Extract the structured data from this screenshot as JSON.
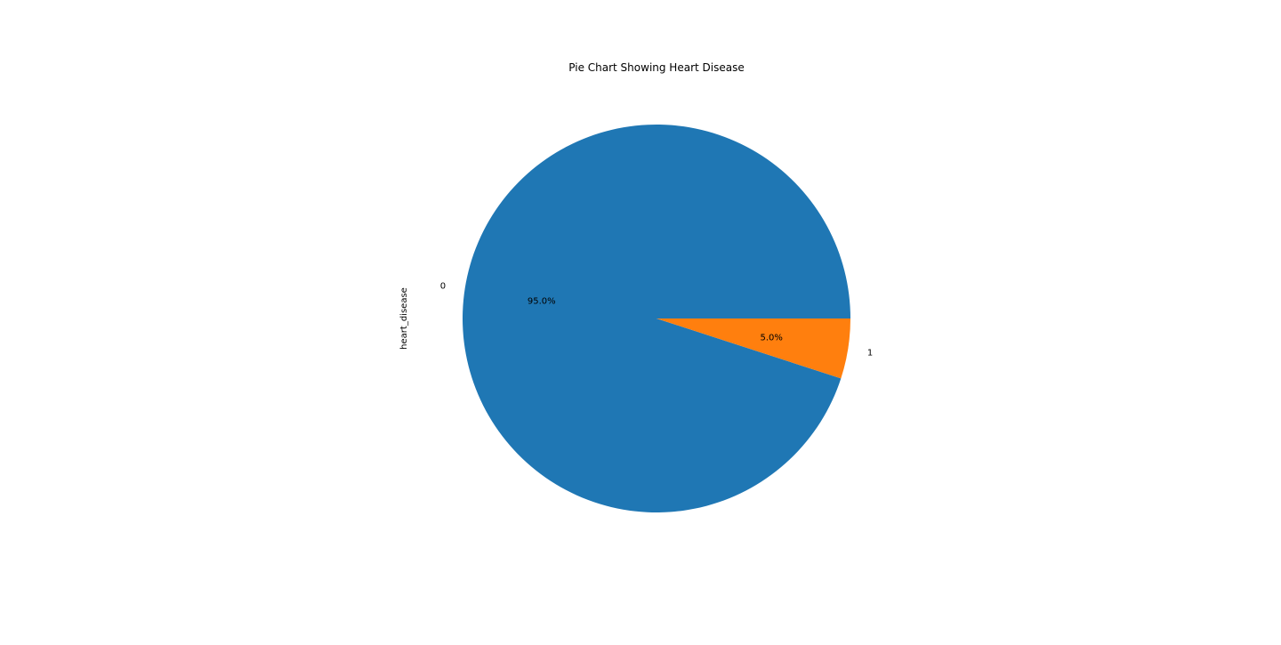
{
  "chart_data": {
    "type": "pie",
    "title": "Pie Chart Showing Heart Disease",
    "xlabel": "",
    "ylabel": "heart_disease",
    "categories": [
      "0",
      "1"
    ],
    "values": [
      95.0,
      5.0
    ],
    "value_labels": [
      "95.0%",
      "5.0%"
    ],
    "colors": [
      "#1f77b4",
      "#ff7f0e"
    ],
    "start_angle_deg": 0,
    "direction": "counterclockwise",
    "legend": "none",
    "grid": false
  }
}
